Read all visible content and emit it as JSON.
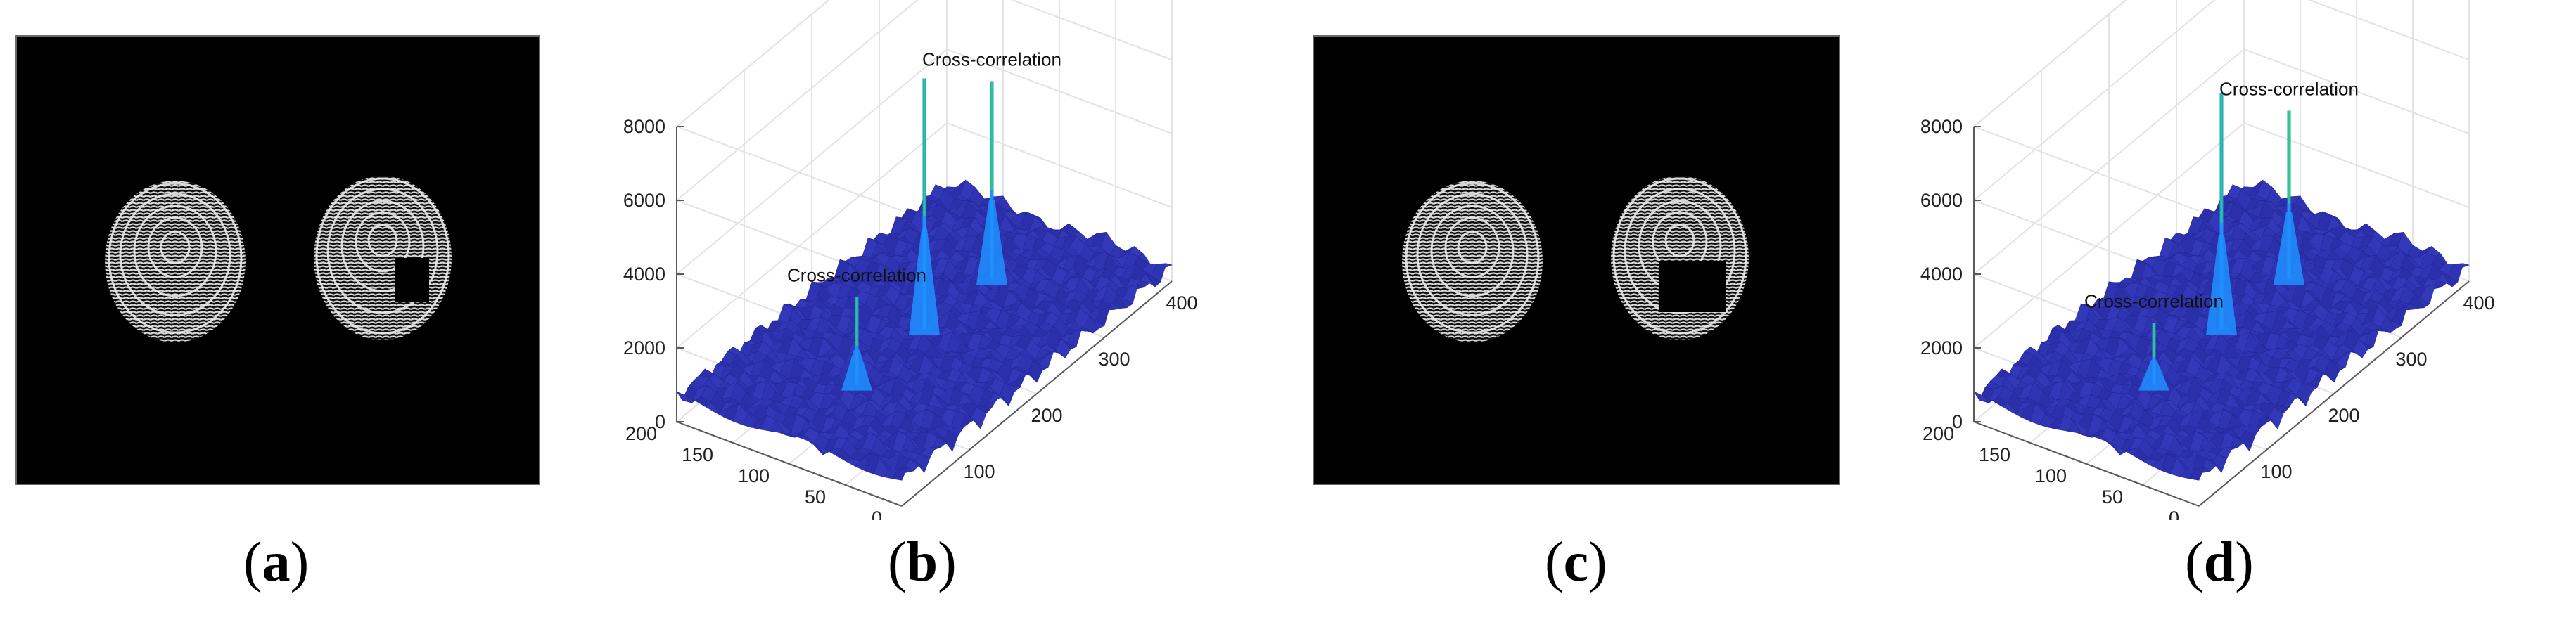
{
  "panels": [
    {
      "label": "a",
      "kind": "image",
      "image": {
        "description_icon": "fingerprint-pair-icon",
        "occlusion": "small-square-right-print"
      }
    },
    {
      "label": "b",
      "kind": "surface",
      "annotations": [
        "Cross-correlation",
        "Cross-correlation"
      ]
    },
    {
      "label": "c",
      "kind": "image",
      "image": {
        "description_icon": "fingerprint-pair-icon",
        "occlusion": "wide-rectangle-right-print"
      }
    },
    {
      "label": "d",
      "kind": "surface",
      "annotations": [
        "Cross-correlation",
        "Cross-correlation"
      ]
    }
  ],
  "chart_data": [
    {
      "type": "surface",
      "panel": "b",
      "title": "",
      "xlabel": "",
      "ylabel": "",
      "zlabel": "",
      "x_ticks": [
        "0",
        "100",
        "200",
        "300",
        "400"
      ],
      "y_ticks": [
        "0",
        "50",
        "100",
        "150",
        "200"
      ],
      "z_ticks": [
        "0",
        "2000",
        "4000",
        "6000",
        "8000"
      ],
      "xlim": [
        0,
        400
      ],
      "ylim": [
        0,
        200
      ],
      "zlim": [
        0,
        8000
      ],
      "grid": true,
      "colormap": "parula",
      "baseline": 700,
      "peaks": [
        {
          "name": "Cross-correlation",
          "x": 100,
          "y": 100,
          "z": 3000
        },
        {
          "name": "",
          "x": 200,
          "y": 100,
          "z": 7400
        },
        {
          "name": "Cross-correlation",
          "x": 300,
          "y": 100,
          "z": 5800
        }
      ],
      "annotations": [
        "Cross-correlation",
        "Cross-correlation"
      ]
    },
    {
      "type": "surface",
      "panel": "d",
      "title": "",
      "xlabel": "",
      "ylabel": "",
      "zlabel": "",
      "x_ticks": [
        "0",
        "100",
        "200",
        "300",
        "400"
      ],
      "y_ticks": [
        "0",
        "50",
        "100",
        "150",
        "200"
      ],
      "z_ticks": [
        "0",
        "2000",
        "4000",
        "6000",
        "8000"
      ],
      "xlim": [
        0,
        400
      ],
      "ylim": [
        0,
        200
      ],
      "zlim": [
        0,
        8000
      ],
      "grid": true,
      "colormap": "parula",
      "baseline": 700,
      "peaks": [
        {
          "name": "Cross-correlation",
          "x": 100,
          "y": 100,
          "z": 2300
        },
        {
          "name": "",
          "x": 200,
          "y": 100,
          "z": 7000
        },
        {
          "name": "Cross-correlation",
          "x": 300,
          "y": 100,
          "z": 5000
        }
      ],
      "annotations": [
        "Cross-correlation",
        "Cross-correlation"
      ]
    }
  ],
  "colors": {
    "surface_base": "#3a3fc8",
    "surface_dark": "#23289a",
    "peak_mid": "#1e90ff",
    "peak_top": "#2ecc71",
    "axis": "#5a5a5a",
    "grid": "#e3e3e3"
  }
}
